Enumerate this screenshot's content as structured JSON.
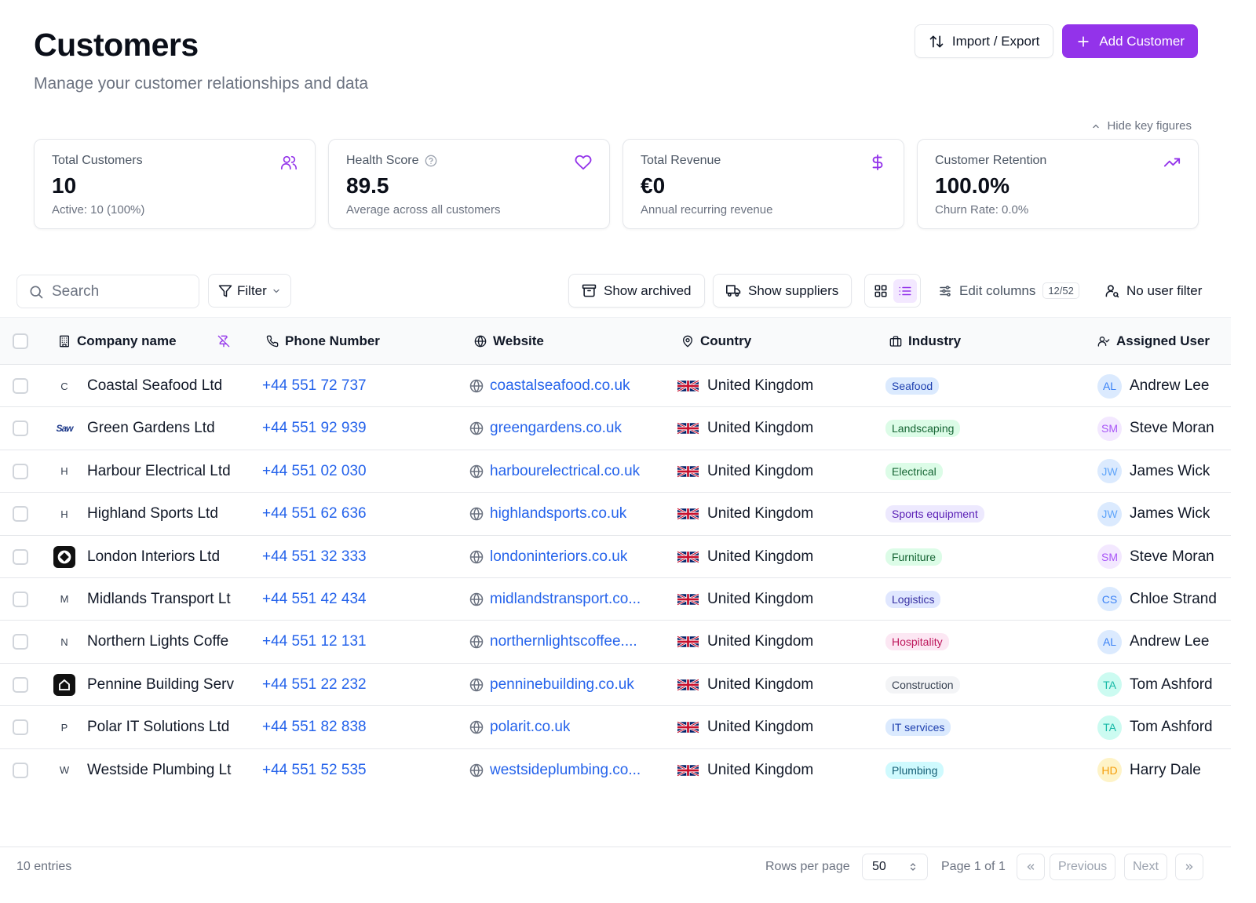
{
  "header": {
    "title": "Customers",
    "subtitle": "Manage your customer relationships and data",
    "import_export_label": "Import / Export",
    "add_customer_label": "Add Customer"
  },
  "key_figures": {
    "toggle_label": "Hide key figures",
    "cards": [
      {
        "label": "Total Customers",
        "value": "10",
        "sub": "Active: 10 (100%)",
        "icon": "users-icon"
      },
      {
        "label": "Health Score",
        "value": "89.5",
        "sub": "Average across all customers",
        "icon": "heart-icon"
      },
      {
        "label": "Total Revenue",
        "value": "€0",
        "sub": "Annual recurring revenue",
        "icon": "dollar-icon"
      },
      {
        "label": "Customer Retention",
        "value": "100.0%",
        "sub": "Churn Rate: 0.0%",
        "icon": "trending-up-icon"
      }
    ]
  },
  "toolbar": {
    "search_placeholder": "Search",
    "filter_label": "Filter",
    "show_archived_label": "Show archived",
    "show_suppliers_label": "Show suppliers",
    "edit_columns_label": "Edit columns",
    "columns_count": "12/52",
    "user_filter_label": "No user filter"
  },
  "table": {
    "columns": {
      "company": "Company name",
      "phone": "Phone Number",
      "website": "Website",
      "country": "Country",
      "industry": "Industry",
      "assigned": "Assigned User"
    },
    "rows": [
      {
        "logo": "C",
        "company": "Coastal Seafood Ltd",
        "phone": "+44 551 72 737",
        "website": "coastalseafood.co.uk",
        "country": "United Kingdom",
        "industry": "Seafood",
        "user": "Andrew Lee",
        "initials": "AL"
      },
      {
        "logo": "Saw",
        "company": "Green Gardens Ltd",
        "phone": "+44 551 92 939",
        "website": "greengardens.co.uk",
        "country": "United Kingdom",
        "industry": "Landscaping",
        "user": "Steve Moran",
        "initials": "SM"
      },
      {
        "logo": "H",
        "company": "Harbour Electrical Ltd",
        "phone": "+44 551 02 030",
        "website": "harbourelectrical.co.uk",
        "country": "United Kingdom",
        "industry": "Electrical",
        "user": "James Wick",
        "initials": "JW"
      },
      {
        "logo": "H",
        "company": "Highland Sports Ltd",
        "phone": "+44 551 62 636",
        "website": "highlandsports.co.uk",
        "country": "United Kingdom",
        "industry": "Sports equipment",
        "user": "James Wick",
        "initials": "JW"
      },
      {
        "logo": "",
        "company": "London Interiors Ltd",
        "phone": "+44 551 32 333",
        "website": "londoninteriors.co.uk",
        "country": "United Kingdom",
        "industry": "Furniture",
        "user": "Steve Moran",
        "initials": "SM"
      },
      {
        "logo": "M",
        "company": "Midlands Transport Lt",
        "phone": "+44 551 42 434",
        "website": "midlandstransport.co...",
        "country": "United Kingdom",
        "industry": "Logistics",
        "user": "Chloe Strand",
        "initials": "CS"
      },
      {
        "logo": "N",
        "company": "Northern Lights Coffe",
        "phone": "+44 551 12 131",
        "website": "northernlightscoffee....",
        "country": "United Kingdom",
        "industry": "Hospitality",
        "user": "Andrew Lee",
        "initials": "AL"
      },
      {
        "logo": "",
        "company": "Pennine Building Serv",
        "phone": "+44 551 22 232",
        "website": "penninebuilding.co.uk",
        "country": "United Kingdom",
        "industry": "Construction",
        "user": "Tom Ashford",
        "initials": "TA"
      },
      {
        "logo": "P",
        "company": "Polar IT Solutions Ltd",
        "phone": "+44 551 82 838",
        "website": "polarit.co.uk",
        "country": "United Kingdom",
        "industry": "IT services",
        "user": "Tom Ashford",
        "initials": "TA"
      },
      {
        "logo": "W",
        "company": "Westside Plumbing Lt",
        "phone": "+44 551 52 535",
        "website": "westsideplumbing.co...",
        "country": "United Kingdom",
        "industry": "Plumbing",
        "user": "Harry Dale",
        "initials": "HD"
      }
    ]
  },
  "footer": {
    "entries": "10 entries",
    "rows_per_page_label": "Rows per page",
    "rows_per_page_value": "50",
    "page_info": "Page 1 of 1",
    "previous_label": "Previous",
    "next_label": "Next"
  }
}
